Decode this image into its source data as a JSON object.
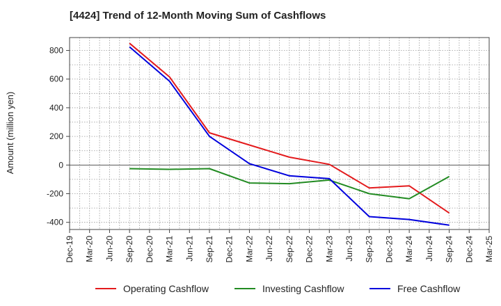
{
  "chart_data": {
    "type": "line",
    "title": "[4424]  Trend of 12-Month Moving Sum of Cashflows",
    "ylabel": "Amount (million yen)",
    "xlabel": "",
    "x": [
      "Dec-19",
      "Mar-20",
      "Jun-20",
      "Sep-20",
      "Dec-20",
      "Mar-21",
      "Jun-21",
      "Sep-21",
      "Dec-21",
      "Mar-22",
      "Jun-22",
      "Sep-22",
      "Dec-22",
      "Mar-23",
      "Jun-23",
      "Sep-23",
      "Dec-23",
      "Mar-24",
      "Jun-24",
      "Sep-24",
      "Dec-24",
      "Mar-25"
    ],
    "ylim": [
      -450,
      890
    ],
    "yticks": [
      -400,
      -200,
      0,
      200,
      400,
      600,
      800
    ],
    "grid": true,
    "legend_position": "bottom",
    "series": [
      {
        "name": "Operating Cashflow",
        "color": "#e31a1c",
        "values": [
          null,
          null,
          null,
          850,
          null,
          615,
          null,
          225,
          null,
          140,
          null,
          55,
          null,
          5,
          null,
          -160,
          null,
          -145,
          null,
          -335,
          null,
          null
        ]
      },
      {
        "name": "Investing Cashflow",
        "color": "#228b22",
        "values": [
          null,
          null,
          null,
          -25,
          null,
          -30,
          null,
          -25,
          null,
          -125,
          null,
          -130,
          null,
          -105,
          null,
          -200,
          null,
          -235,
          null,
          -80,
          null,
          null
        ]
      },
      {
        "name": "Free Cashflow",
        "color": "#0000dd",
        "values": [
          null,
          null,
          null,
          825,
          null,
          585,
          null,
          200,
          null,
          10,
          null,
          -75,
          null,
          -95,
          null,
          -360,
          null,
          -380,
          null,
          -420,
          null,
          null
        ]
      }
    ]
  }
}
